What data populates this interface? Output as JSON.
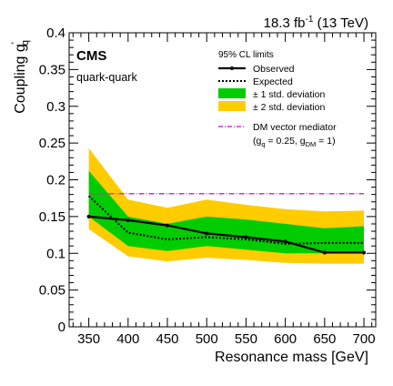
{
  "chart_data": {
    "type": "line",
    "title": "",
    "lumi_prefix": "18.3 fb",
    "lumi_sup": "-1",
    "lumi_suffix": " (13 TeV)",
    "experiment": "CMS",
    "channel": "quark-quark",
    "xlabel": "Resonance mass [GeV]",
    "ylabel_prefix": "Coupling g",
    "ylabel_prime": "'",
    "ylabel_sub": "q",
    "xlim": [
      325,
      715
    ],
    "ylim": [
      0,
      0.4
    ],
    "xticks": [
      350,
      400,
      450,
      500,
      550,
      600,
      650,
      700
    ],
    "yticks": [
      0,
      0.05,
      0.1,
      0.15,
      0.2,
      0.25,
      0.3,
      0.35,
      0.4
    ],
    "ytick_labels": [
      "0",
      "0.05",
      "0.1",
      "0.15",
      "0.2",
      "0.25",
      "0.3",
      "0.35",
      "0.4"
    ],
    "legend_title": "95% CL limits",
    "legend_placement": "top-right",
    "x": [
      350,
      400,
      450,
      500,
      550,
      600,
      650,
      700
    ],
    "observed": {
      "name": "Observed",
      "values": [
        0.15,
        0.145,
        0.138,
        0.127,
        0.122,
        0.116,
        0.101,
        0.101
      ],
      "color": "#000000"
    },
    "expected": {
      "name": "Expected",
      "values": [
        0.178,
        0.128,
        0.119,
        0.122,
        0.119,
        0.113,
        0.114,
        0.114
      ],
      "color": "#000000"
    },
    "band_1sigma": {
      "name": "± 1 std. deviation",
      "lower": [
        0.15,
        0.11,
        0.103,
        0.11,
        0.105,
        0.1,
        0.1,
        0.1
      ],
      "upper": [
        0.212,
        0.15,
        0.14,
        0.15,
        0.146,
        0.14,
        0.134,
        0.137
      ],
      "color": "#00cc00"
    },
    "band_2sigma": {
      "name": "± 2 std. deviation",
      "lower": [
        0.133,
        0.096,
        0.089,
        0.094,
        0.091,
        0.087,
        0.086,
        0.086
      ],
      "upper": [
        0.243,
        0.173,
        0.162,
        0.173,
        0.166,
        0.16,
        0.157,
        0.158
      ],
      "color": "#ffcc00"
    },
    "dm_mediator": {
      "name": "DM vector mediator",
      "params_prefix": "(g",
      "params_sub1": "q",
      "params_mid": " = 0.25, g",
      "params_sub2": "DM",
      "params_suffix": " = 1)",
      "values": [
        0.181,
        0.181,
        0.181,
        0.181,
        0.181,
        0.181,
        0.181,
        0.181
      ],
      "color": "#cc33cc"
    }
  }
}
